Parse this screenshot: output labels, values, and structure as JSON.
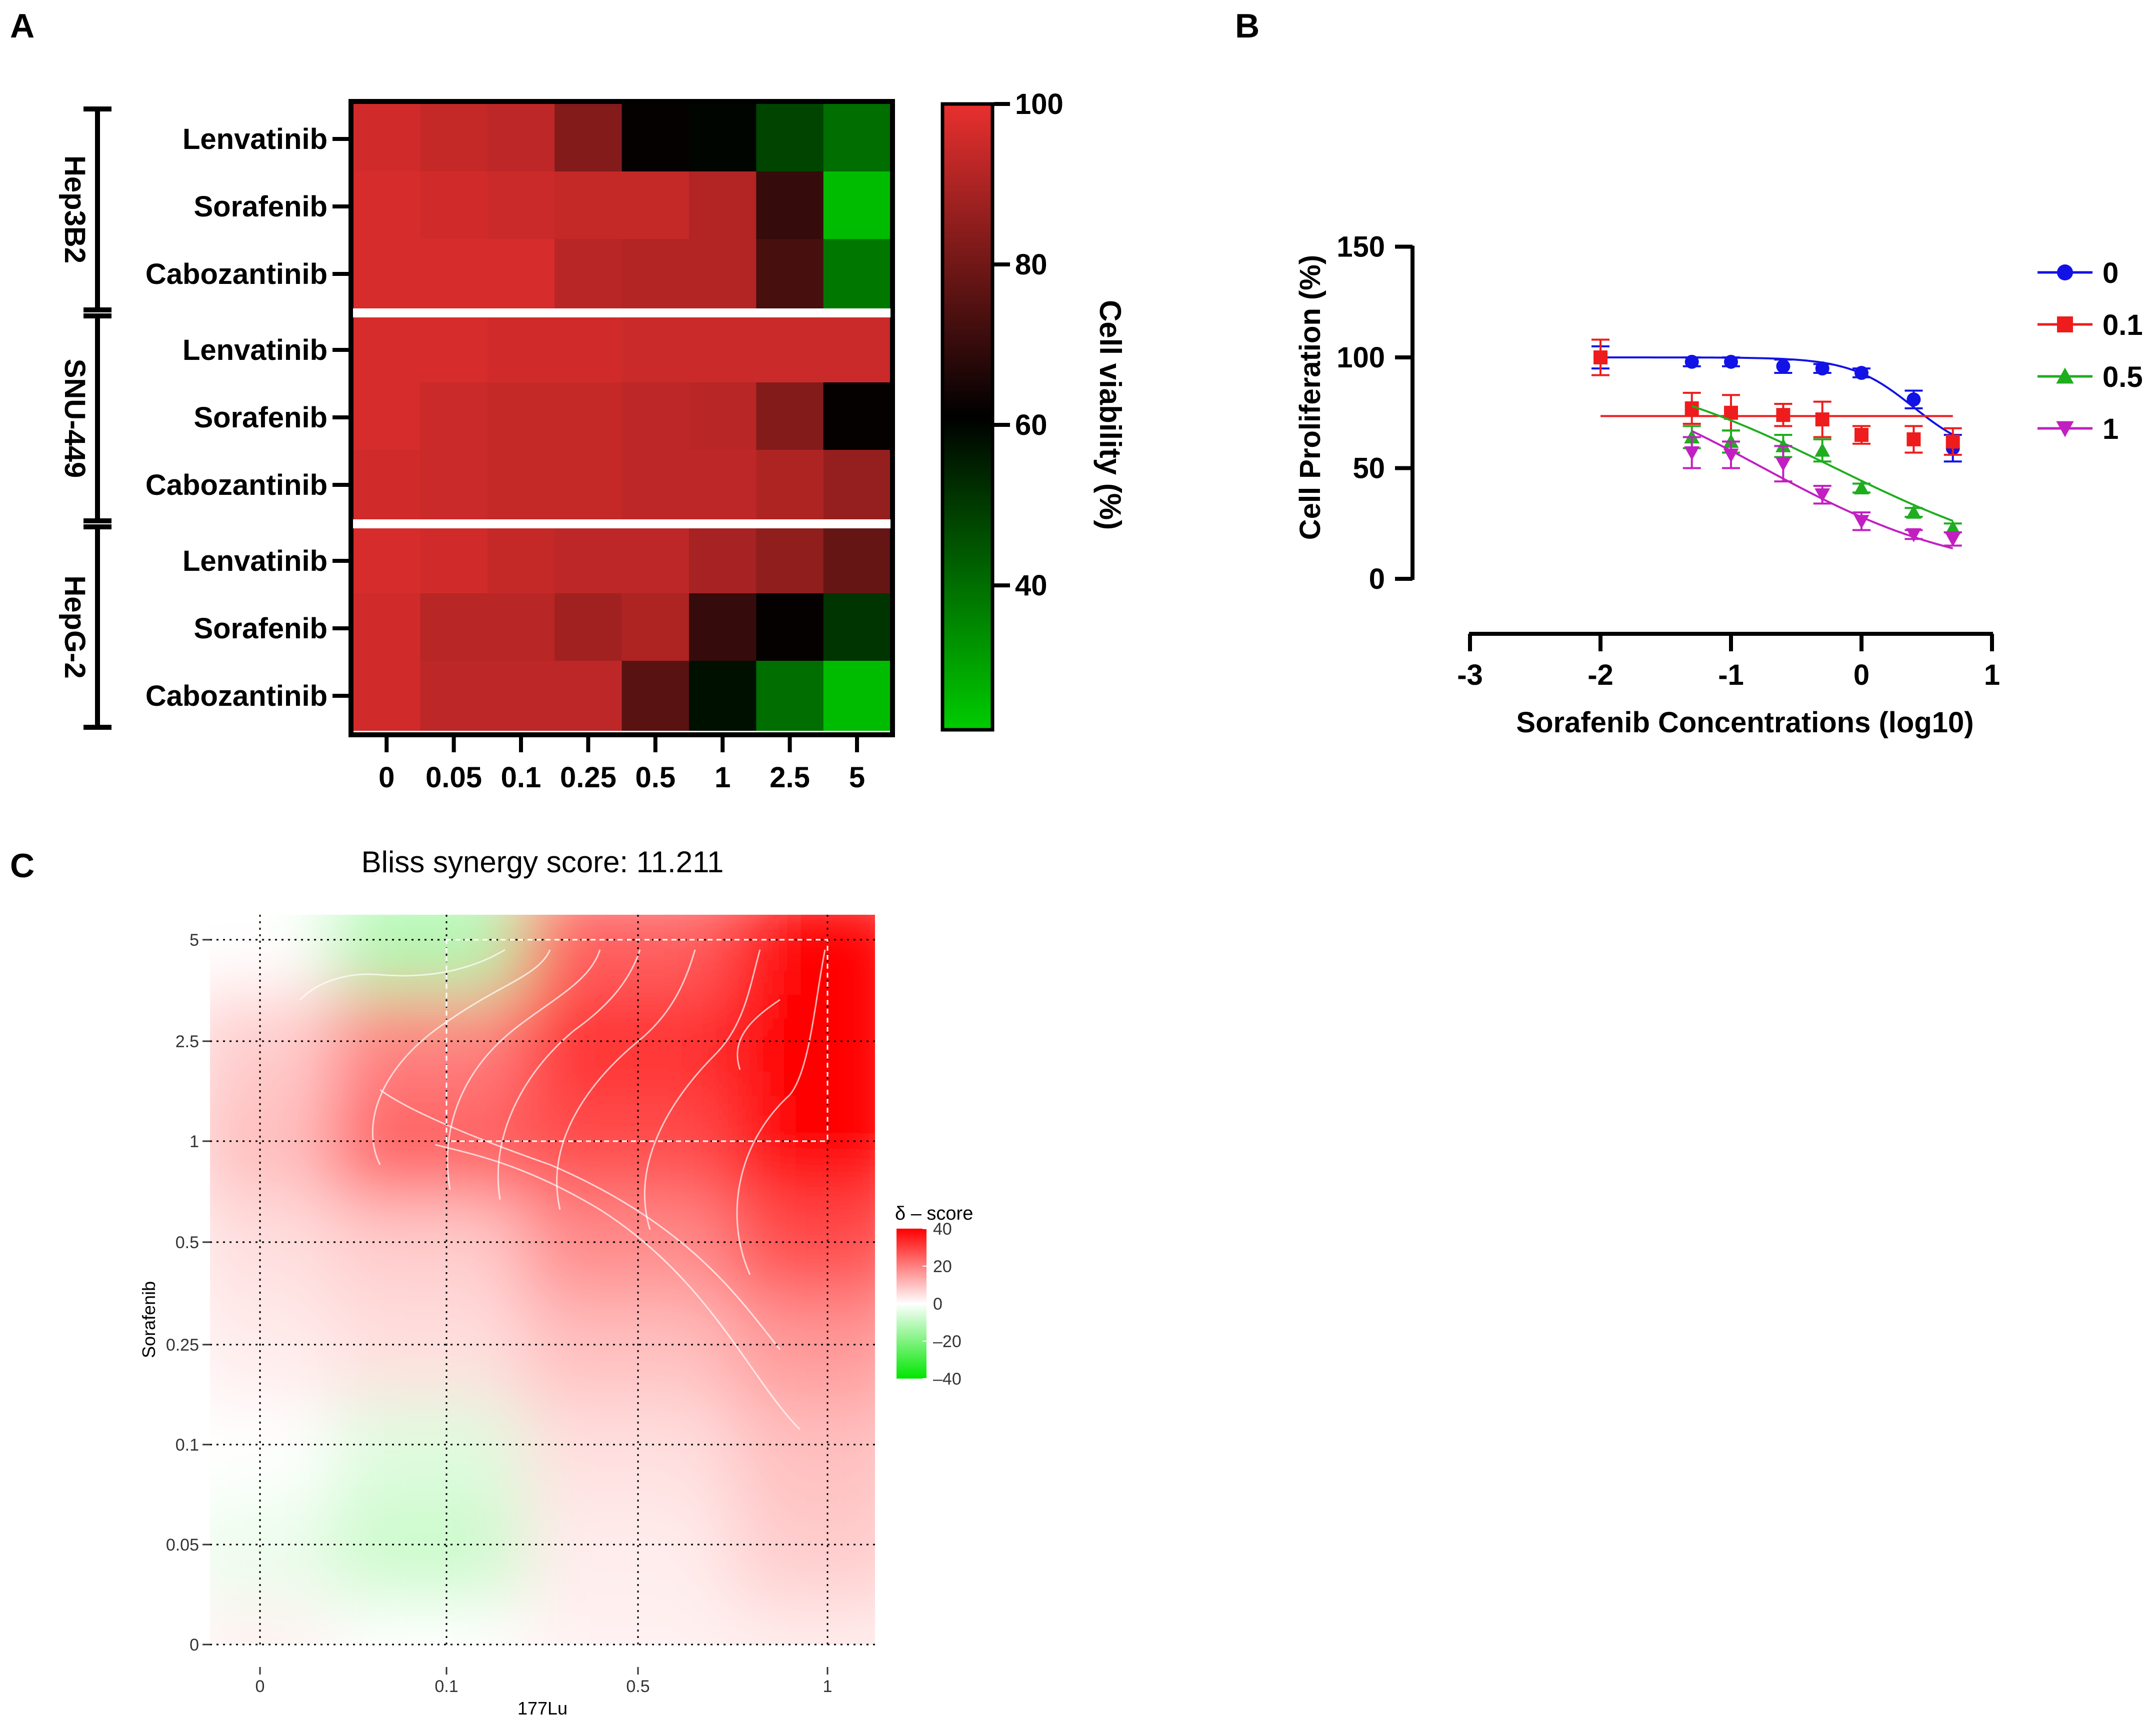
{
  "panels": {
    "a": "A",
    "b": "B",
    "c": "C"
  },
  "chart_data": [
    {
      "type": "heatmap",
      "panel": "A",
      "title": "",
      "xlabel": "",
      "groups": [
        {
          "name": "Hep3B2",
          "rows": [
            "Lenvatinib",
            "Sorafenib",
            "Cabozantinib"
          ]
        },
        {
          "name": "SNU-449",
          "rows": [
            "Lenvatinib",
            "Sorafenib",
            "Cabozantinib"
          ]
        },
        {
          "name": "HepG-2",
          "rows": [
            "Lenvatinib",
            "Sorafenib",
            "Cabozantinib"
          ]
        }
      ],
      "columns": [
        "0",
        "0.05",
        "0.1",
        "0.25",
        "0.5",
        "1",
        "2.5",
        "5"
      ],
      "values": [
        [
          96,
          94,
          93,
          83,
          62,
          60,
          48,
          40
        ],
        [
          97,
          96,
          95,
          94,
          94,
          91,
          70,
          25
        ],
        [
          97,
          97,
          97,
          92,
          91,
          91,
          73,
          38
        ],
        [
          97,
          97,
          96,
          96,
          95,
          95,
          95,
          95
        ],
        [
          97,
          95,
          94,
          94,
          93,
          92,
          83,
          62
        ],
        [
          96,
          95,
          94,
          94,
          93,
          93,
          90,
          86
        ],
        [
          97,
          96,
          94,
          93,
          93,
          89,
          85,
          78
        ],
        [
          96,
          92,
          92,
          88,
          90,
          70,
          62,
          51
        ],
        [
          96,
          93,
          93,
          93,
          76,
          58,
          40,
          25
        ]
      ],
      "colorbar": {
        "label": "Cell viability (%)",
        "min": 22,
        "max": 100,
        "ticks": [
          "40",
          "60",
          "80",
          "100"
        ],
        "low": "#00cc00",
        "mid": "#000000",
        "high": "#e8302f"
      }
    },
    {
      "type": "scatter",
      "panel": "B",
      "title": "",
      "xlabel": "Sorafenib Concentrations (log10)",
      "ylabel": "Cell Proliferation (%)",
      "xlim": [
        -3,
        1
      ],
      "ylim": [
        0,
        150
      ],
      "xticks": [
        "-3",
        "-2",
        "-1",
        "0",
        "1"
      ],
      "yticks": [
        "0",
        "50",
        "100",
        "150"
      ],
      "series": [
        {
          "name": "0",
          "marker": "circle",
          "color": "#1212e6",
          "x": [
            -2,
            -1.3,
            -1,
            -0.6,
            -0.3,
            0,
            0.4,
            0.7
          ],
          "y": [
            100,
            98,
            98,
            96,
            95,
            93,
            81,
            59
          ],
          "err": [
            5,
            2,
            2,
            3,
            2,
            2,
            4,
            6
          ],
          "fit": {
            "top": 100,
            "bottom": 55,
            "logic50": 0.4,
            "hill": 1.8
          }
        },
        {
          "name": "0.1",
          "marker": "square",
          "color": "#ee1c1c",
          "x": [
            -2,
            -1.3,
            -1,
            -0.6,
            -0.3,
            0,
            0.4,
            0.7
          ],
          "y": [
            100,
            77,
            75,
            74,
            72,
            65,
            63,
            62
          ],
          "err": [
            8,
            7,
            8,
            5,
            8,
            4,
            6,
            6
          ],
          "fit": {
            "flat": 73.5
          }
        },
        {
          "name": "0.5",
          "marker": "triangle-up",
          "color": "#1fad1f",
          "x": [
            -1.3,
            -1,
            -0.6,
            -0.3,
            0,
            0.4,
            0.7
          ],
          "y": [
            64,
            62,
            60,
            58,
            41,
            30,
            23
          ],
          "err": [
            5,
            5,
            5,
            5,
            2,
            2,
            2
          ],
          "fit": {
            "top": 100,
            "bottom": 0,
            "logic50": -0.2,
            "hill": 0.5
          }
        },
        {
          "name": "1",
          "marker": "triangle-down",
          "color": "#c21fc2",
          "x": [
            -1.3,
            -1,
            -0.6,
            -0.3,
            0,
            0.4,
            0.7
          ],
          "y": [
            57,
            56,
            52,
            38,
            26,
            20,
            18
          ],
          "err": [
            7,
            6,
            8,
            4,
            4,
            2,
            3
          ],
          "fit": {
            "top": 100,
            "bottom": 0,
            "logic50": -0.75,
            "hill": 0.55
          }
        }
      ]
    },
    {
      "type": "heatmap",
      "panel": "C",
      "title": "Bliss synergy score: 11.211",
      "xlabel": "177Lu",
      "ylabel": "Sorafenib",
      "xticks": [
        "0",
        "0.1",
        "0.5",
        "1"
      ],
      "yticks": [
        "0",
        "0.05",
        "0.1",
        "0.25",
        "0.5",
        "1",
        "2.5",
        "5"
      ],
      "values": [
        [
          2,
          0,
          2,
          3
        ],
        [
          -3,
          -8,
          3,
          8
        ],
        [
          0,
          -5,
          5,
          10
        ],
        [
          3,
          5,
          10,
          16
        ],
        [
          5,
          8,
          18,
          28
        ],
        [
          10,
          25,
          28,
          40
        ],
        [
          8,
          20,
          32,
          42
        ],
        [
          0,
          -12,
          25,
          45
        ]
      ],
      "legend": {
        "title": "δ – score",
        "ticks": [
          "40",
          "20",
          "0",
          "–20",
          "–40"
        ],
        "min": -40,
        "max": 40
      }
    }
  ]
}
